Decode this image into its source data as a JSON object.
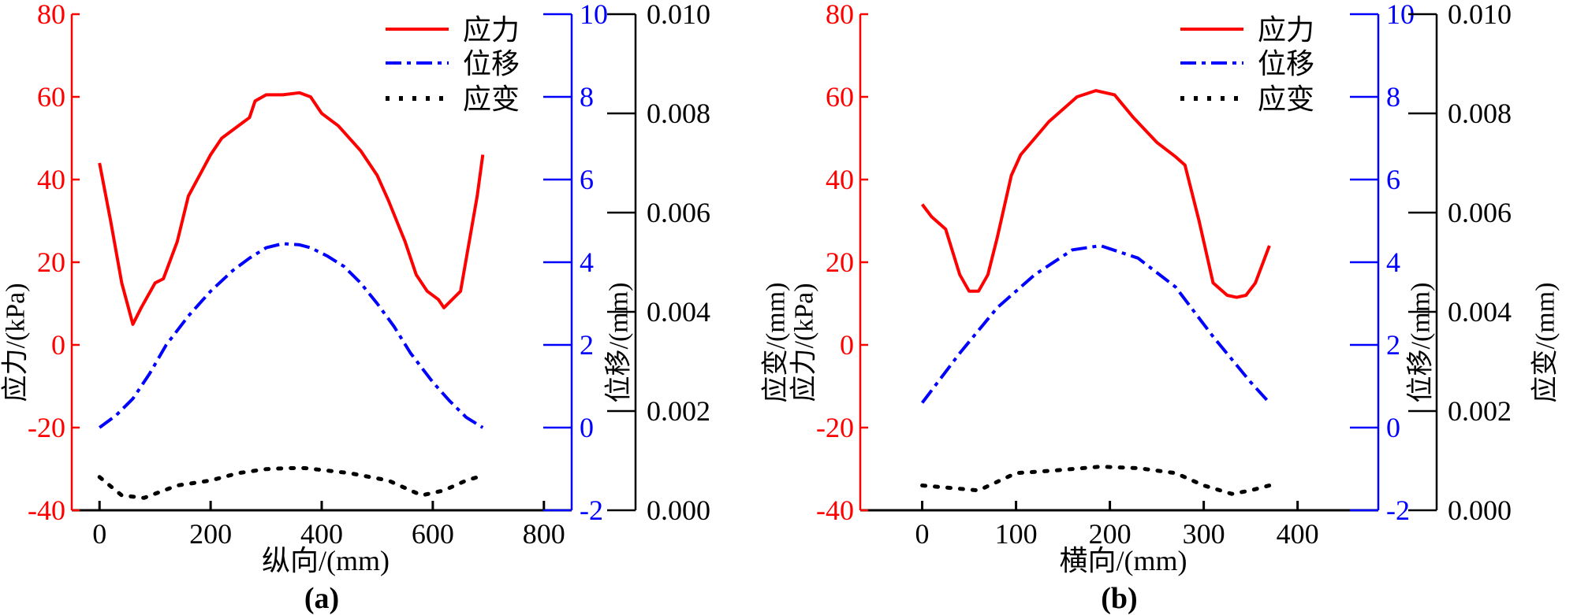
{
  "colors": {
    "stress": "#ff0000",
    "displacement": "#0000ff",
    "strain": "#000000"
  },
  "chart_data": [
    {
      "type": "line",
      "panel_label": "(a)",
      "xlabel": "纵向/(mm)",
      "xlim": [
        -50,
        850
      ],
      "xticks": [
        0,
        200,
        400,
        600,
        800
      ],
      "y_axes": {
        "stress": {
          "label": "应力/(kPa)",
          "lim": [
            -40,
            80
          ],
          "ticks": [
            -40,
            -20,
            0,
            20,
            40,
            60,
            80
          ],
          "tick_labels": [
            "-40",
            "-20",
            "0",
            "20",
            "40",
            "60",
            "80"
          ]
        },
        "displacement": {
          "label": "位移/(mm)",
          "lim": [
            -2,
            10
          ],
          "ticks": [
            -2,
            0,
            2,
            4,
            6,
            8,
            10
          ],
          "tick_labels": [
            "-2",
            "0",
            "2",
            "4",
            "6",
            "8",
            "10"
          ]
        },
        "strain": {
          "label": "应变/(mm)",
          "lim": [
            0,
            0.01
          ],
          "ticks": [
            0,
            0.002,
            0.004,
            0.006,
            0.008,
            0.01
          ],
          "tick_labels": [
            "0.000",
            "0.002",
            "0.004",
            "0.006",
            "0.008",
            "0.010"
          ]
        }
      },
      "legend": {
        "placement": "top-right",
        "entries": [
          "应力",
          "位移",
          "应变"
        ]
      },
      "series": [
        {
          "name": "应力",
          "axis": "stress",
          "style": "solid",
          "x": [
            0,
            20,
            40,
            60,
            75,
            100,
            115,
            140,
            160,
            180,
            200,
            220,
            240,
            260,
            270,
            280,
            300,
            330,
            360,
            380,
            400,
            430,
            470,
            500,
            520,
            550,
            570,
            590,
            610,
            620,
            650,
            680,
            690
          ],
          "y": [
            44,
            30,
            15,
            5,
            9,
            15,
            16,
            25,
            36,
            41,
            46,
            50,
            52,
            54,
            55,
            59,
            60.5,
            60.5,
            61,
            60,
            56,
            53,
            47,
            41,
            35,
            25,
            17,
            13,
            11,
            9,
            13,
            36,
            46
          ]
        },
        {
          "name": "位移",
          "axis": "displacement",
          "style": "dashdot",
          "x": [
            0,
            30,
            60,
            90,
            120,
            160,
            200,
            240,
            270,
            300,
            330,
            360,
            380,
            410,
            440,
            470,
            500,
            530,
            560,
            600,
            630,
            660,
            690
          ],
          "y": [
            0,
            0.3,
            0.7,
            1.3,
            2,
            2.7,
            3.3,
            3.8,
            4.1,
            4.35,
            4.45,
            4.42,
            4.35,
            4.15,
            3.9,
            3.5,
            3,
            2.45,
            1.8,
            1.1,
            0.65,
            0.25,
            0
          ]
        },
        {
          "name": "应变",
          "axis": "strain",
          "style": "dotted",
          "x": [
            0,
            40,
            80,
            140,
            200,
            250,
            300,
            340,
            370,
            410,
            450,
            520,
            580,
            620,
            660,
            690
          ],
          "y": [
            0.00067,
            0.0003,
            0.00025,
            0.0005,
            0.0006,
            0.00075,
            0.00083,
            0.00085,
            0.00085,
            0.0008,
            0.00075,
            0.0006,
            0.0003,
            0.0004,
            0.0006,
            0.0007
          ]
        }
      ]
    },
    {
      "type": "line",
      "panel_label": "(b)",
      "xlabel": "横向/(mm)",
      "xlim": [
        -66,
        486
      ],
      "xticks": [
        0,
        100,
        200,
        300,
        400
      ],
      "y_axes": {
        "stress": {
          "label": "应力/(kPa)",
          "lim": [
            -40,
            80
          ],
          "ticks": [
            -40,
            -20,
            0,
            20,
            40,
            60,
            80
          ],
          "tick_labels": [
            "-40",
            "-20",
            "0",
            "20",
            "40",
            "60",
            "80"
          ]
        },
        "displacement": {
          "label": "位移/(mm)",
          "lim": [
            -2,
            10
          ],
          "ticks": [
            -2,
            0,
            2,
            4,
            6,
            8,
            10
          ],
          "tick_labels": [
            "-2",
            "0",
            "2",
            "4",
            "6",
            "8",
            "10"
          ]
        },
        "strain": {
          "label": "应变/(mm)",
          "lim": [
            0,
            0.01
          ],
          "ticks": [
            0,
            0.002,
            0.004,
            0.006,
            0.008,
            0.01
          ],
          "tick_labels": [
            "0.000",
            "0.002",
            "0.004",
            "0.006",
            "0.008",
            "0.010"
          ]
        }
      },
      "legend": {
        "placement": "top-right",
        "entries": [
          "应力",
          "位移",
          "应变"
        ]
      },
      "series": [
        {
          "name": "应力",
          "axis": "stress",
          "style": "solid",
          "x": [
            0,
            10,
            25,
            40,
            50,
            60,
            70,
            80,
            95,
            105,
            120,
            135,
            150,
            165,
            185,
            205,
            225,
            250,
            270,
            280,
            295,
            310,
            325,
            335,
            345,
            355,
            370
          ],
          "y": [
            34,
            31,
            28,
            17,
            13,
            13,
            17,
            26,
            41,
            46,
            50,
            54,
            57,
            60,
            61.5,
            60.5,
            55,
            49,
            45.5,
            43.5,
            30,
            15,
            12,
            11.5,
            12,
            15,
            24
          ]
        },
        {
          "name": "位移",
          "axis": "displacement",
          "style": "dashdot",
          "x": [
            0,
            40,
            80,
            120,
            160,
            190,
            230,
            270,
            310,
            350,
            370
          ],
          "y": [
            0.6,
            1.8,
            2.9,
            3.7,
            4.3,
            4.4,
            4.1,
            3.4,
            2.2,
            1.1,
            0.6
          ]
        },
        {
          "name": "应变",
          "axis": "strain",
          "style": "dotted",
          "x": [
            0,
            30,
            60,
            100,
            140,
            190,
            230,
            270,
            300,
            330,
            350,
            370
          ],
          "y": [
            0.0005,
            0.00045,
            0.0004,
            0.00075,
            0.0008,
            0.00088,
            0.00085,
            0.00075,
            0.0005,
            0.00033,
            0.0004,
            0.0005
          ]
        }
      ]
    }
  ]
}
